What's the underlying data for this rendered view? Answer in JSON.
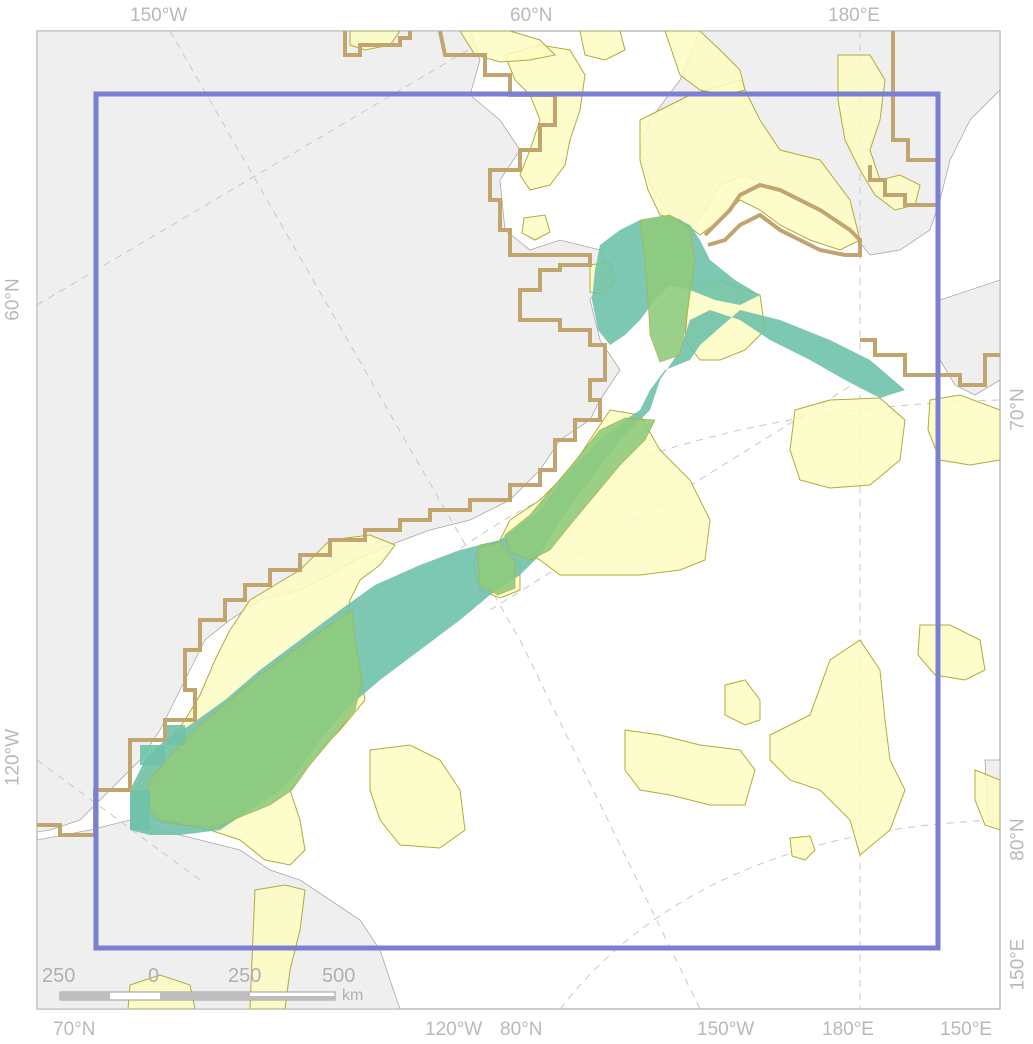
{
  "graticule_labels": {
    "top": [
      "150°W",
      "60°N",
      "180°E"
    ],
    "bottom": [
      "70°N",
      "120°W",
      "80°N",
      "150°W",
      "180°E",
      "150°E"
    ],
    "left": [
      "60°N",
      "120°W"
    ],
    "right": [
      "70°N",
      "80°N",
      "150°E"
    ]
  },
  "scale_bar": {
    "ticks": [
      "250",
      "0",
      "250",
      "500"
    ],
    "unit": "km"
  },
  "colors": {
    "land": "#efefef",
    "coast": "#a9a9a9",
    "ocean": "#ffffff",
    "boundary_box": "#7b7fd4",
    "brown_outline": "#c2a46e",
    "yellow_fill": "#fdfbc2",
    "yellow_stroke": "#b3ab3a",
    "teal_grid": "#6fc2aa",
    "green_overlap": "#8fcb7d",
    "graticule": "#c8c8c8",
    "label": "#b9b9b9"
  }
}
